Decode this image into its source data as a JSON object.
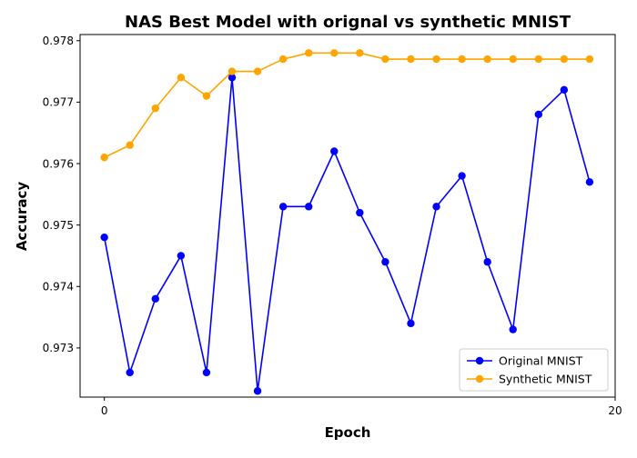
{
  "chart_data": {
    "type": "line",
    "title": "NAS Best Model with orignal vs synthetic MNIST",
    "xlabel": "Epoch",
    "ylabel": "Accuracy",
    "xlim": [
      -0.95,
      20.0
    ],
    "ylim": [
      0.9722,
      0.9781
    ],
    "x_ticks": [
      0,
      20
    ],
    "x_tick_labels": [
      "0",
      "20"
    ],
    "y_ticks": [
      0.973,
      0.974,
      0.975,
      0.976,
      0.977,
      0.978
    ],
    "y_tick_labels": [
      "0.973",
      "0.974",
      "0.975",
      "0.976",
      "0.977",
      "0.978"
    ],
    "grid": false,
    "legend_position": "bottom-right",
    "x": [
      0,
      1,
      2,
      3,
      4,
      5,
      6,
      7,
      8,
      9,
      10,
      11,
      12,
      13,
      14,
      15,
      16,
      17,
      18,
      19
    ],
    "series": [
      {
        "name": "Original MNIST",
        "color": "#0000ff",
        "marker": "circle",
        "values": [
          0.9748,
          0.9726,
          0.9738,
          0.9745,
          0.9726,
          0.9774,
          0.9723,
          0.9753,
          0.9753,
          0.9762,
          0.9752,
          0.9744,
          0.9734,
          0.9753,
          0.9758,
          0.9744,
          0.9733,
          0.9768,
          0.9772,
          0.9757
        ]
      },
      {
        "name": "Synthetic MNIST",
        "color": "#ffa500",
        "marker": "circle",
        "values": [
          0.9761,
          0.9763,
          0.9769,
          0.9774,
          0.9771,
          0.9775,
          0.9775,
          0.9777,
          0.9778,
          0.9778,
          0.9778,
          0.9777,
          0.9777,
          0.9777,
          0.9777,
          0.9777,
          0.9777,
          0.9777,
          0.9777,
          0.9777
        ]
      }
    ]
  }
}
